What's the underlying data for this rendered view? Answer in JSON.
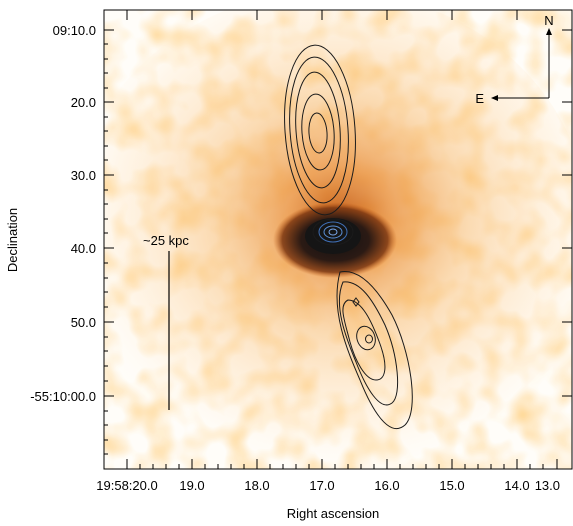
{
  "figure": {
    "y_ticks": [
      "09:10.0",
      "20.0",
      "30.0",
      "40.0",
      "50.0",
      "-55:10:00.0"
    ],
    "x_ticks": [
      "19:58:20.0",
      "19.0",
      "18.0",
      "17.0",
      "16.0",
      "15.0",
      "14.0",
      "13.0"
    ],
    "x_axis_label": "Right ascension",
    "y_axis_label": "Declination",
    "compass": {
      "north": "N",
      "east": "E"
    },
    "scale_bar_label": "~25 kpc"
  },
  "colors": {
    "emission_light": "#ffd8a3",
    "emission_mid": "#f4a94f",
    "emission_dark": "#b8561d",
    "core": "#1d1d1f",
    "contour": "#1b1b1b",
    "inner_contour": "#3f6fb6"
  }
}
